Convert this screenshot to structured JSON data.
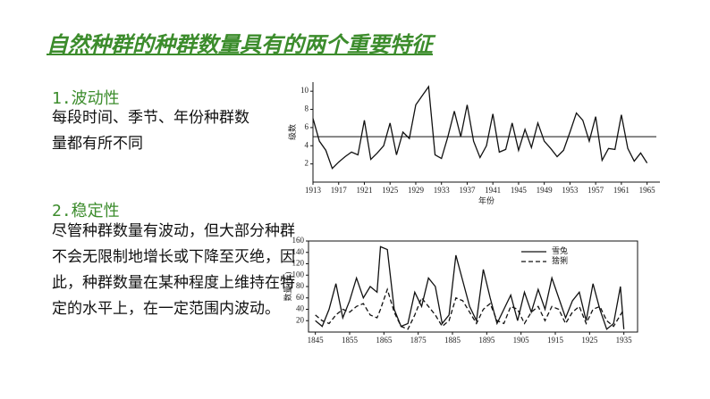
{
  "title": "自然种群的种群数量具有的两个重要特征",
  "sections": [
    {
      "heading": "1.波动性",
      "lines": [
        "每段时间、季节、年份种群数",
        "量都有所不同"
      ]
    },
    {
      "heading": "2.稳定性",
      "lines": [
        "尽管种群数量有波动，但大部分种群",
        "不会无限制地增长或下降至灭绝，因",
        "此，种群数量在某种程度上维持在特",
        "定的水平上，在一定范围内波动。"
      ]
    }
  ],
  "chart_data": [
    {
      "type": "line",
      "x_label": "年份",
      "y_label": "级数",
      "color": "#111",
      "x": [
        1913,
        1914,
        1915,
        1916,
        1917,
        1918,
        1919,
        1920,
        1921,
        1922,
        1923,
        1924,
        1925,
        1926,
        1927,
        1928,
        1929,
        1930,
        1931,
        1932,
        1933,
        1934,
        1935,
        1936,
        1937,
        1938,
        1939,
        1940,
        1941,
        1942,
        1943,
        1944,
        1945,
        1946,
        1947,
        1948,
        1949,
        1950,
        1951,
        1952,
        1953,
        1954,
        1955,
        1956,
        1957,
        1958,
        1959,
        1960,
        1961,
        1962,
        1963,
        1964,
        1965
      ],
      "values": [
        7,
        4.5,
        3.5,
        1.5,
        2.2,
        2.8,
        3.3,
        3,
        6.8,
        2.5,
        3.2,
        4,
        6.5,
        3,
        5.5,
        4.8,
        8.5,
        9.5,
        10.5,
        3,
        2.6,
        5,
        7.8,
        5,
        8.5,
        4.5,
        2.7,
        4,
        7.5,
        3.3,
        3.6,
        6.5,
        3.5,
        5.8,
        3.8,
        6.5,
        4.5,
        3.7,
        2.8,
        3.5,
        5.5,
        7.6,
        6.8,
        4.5,
        7.2,
        2.4,
        3.7,
        3.6,
        7.4,
        3.7,
        2.3,
        3.2,
        2.1
      ],
      "reference_line": 5,
      "xlim": [
        1913,
        1967
      ],
      "xticks": [
        1913,
        1917,
        1921,
        1925,
        1929,
        1933,
        1937,
        1941,
        1945,
        1949,
        1953,
        1957,
        1961,
        1965
      ],
      "ylim": [
        0,
        11
      ],
      "yticks": [
        2,
        4,
        6,
        8,
        10
      ]
    },
    {
      "type": "line",
      "y_label": "数量(千)",
      "legend": "top-right",
      "x": [
        1845,
        1847,
        1849,
        1851,
        1853,
        1855,
        1857,
        1859,
        1861,
        1863,
        1864,
        1866,
        1868,
        1870,
        1872,
        1874,
        1876,
        1878,
        1880,
        1882,
        1884,
        1886,
        1888,
        1890,
        1892,
        1894,
        1896,
        1898,
        1900,
        1902,
        1904,
        1906,
        1908,
        1910,
        1912,
        1914,
        1916,
        1918,
        1920,
        1922,
        1924,
        1926,
        1928,
        1930,
        1932,
        1934,
        1935
      ],
      "series": [
        {
          "name": "雪兔",
          "color": "#111",
          "style": "solid",
          "values": [
            20,
            10,
            40,
            85,
            25,
            55,
            95,
            60,
            80,
            70,
            150,
            145,
            40,
            10,
            15,
            70,
            45,
            95,
            80,
            15,
            30,
            135,
            90,
            45,
            20,
            110,
            60,
            15,
            40,
            65,
            20,
            70,
            35,
            75,
            40,
            95,
            60,
            25,
            55,
            70,
            20,
            85,
            40,
            5,
            15,
            80,
            5
          ]
        },
        {
          "name": "猞猁",
          "color": "#111",
          "style": "dashed",
          "values": [
            30,
            20,
            15,
            30,
            40,
            35,
            45,
            50,
            30,
            25,
            40,
            75,
            35,
            10,
            5,
            30,
            60,
            45,
            30,
            10,
            20,
            60,
            55,
            35,
            15,
            40,
            50,
            20,
            15,
            45,
            40,
            15,
            35,
            45,
            20,
            45,
            40,
            15,
            35,
            45,
            15,
            40,
            45,
            20,
            10,
            30,
            40
          ]
        }
      ],
      "xlim": [
        1843,
        1939
      ],
      "xticks": [
        1845,
        1855,
        1865,
        1875,
        1885,
        1895,
        1905,
        1915,
        1925,
        1935
      ],
      "ylim": [
        0,
        160
      ],
      "yticks": [
        20,
        40,
        60,
        80,
        100,
        120,
        140,
        160
      ]
    }
  ]
}
